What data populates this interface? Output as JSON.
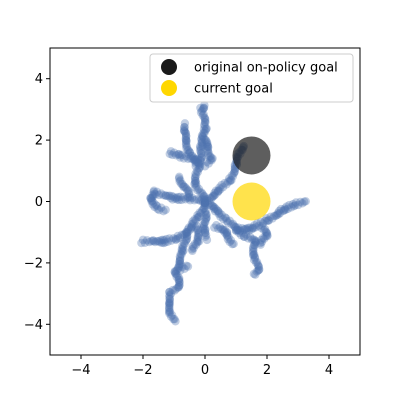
{
  "chart_data": {
    "type": "scatter",
    "title": "",
    "xlabel": "",
    "ylabel": "",
    "xlim": [
      -5,
      5
    ],
    "ylim": [
      -5,
      5
    ],
    "xticks": [
      -4,
      -2,
      0,
      2,
      4
    ],
    "yticks": [
      -4,
      -2,
      0,
      2,
      4
    ],
    "xtick_labels": [
      "−4",
      "−2",
      "0",
      "2",
      "4"
    ],
    "ytick_labels": [
      "−4",
      "−2",
      "0",
      "2",
      "4"
    ],
    "grid": false,
    "legend_position": "upper-right",
    "trajectory_color": "#4c72b0",
    "trajectory_branches": [
      {
        "points": [
          [
            0.0,
            0.0
          ],
          [
            -0.3,
            0.6
          ],
          [
            -0.2,
            1.2
          ],
          [
            -0.1,
            1.8
          ],
          [
            0.0,
            2.4
          ],
          [
            -0.1,
            3.0
          ],
          [
            0.0,
            3.1
          ]
        ]
      },
      {
        "points": [
          [
            -0.3,
            1.2
          ],
          [
            -0.5,
            1.6
          ],
          [
            -0.6,
            2.0
          ],
          [
            -0.7,
            2.3
          ],
          [
            -0.6,
            2.5
          ]
        ]
      },
      {
        "points": [
          [
            0.0,
            1.2
          ],
          [
            0.2,
            1.4
          ],
          [
            0.1,
            1.8
          ],
          [
            -0.1,
            2.1
          ]
        ]
      },
      {
        "points": [
          [
            -0.2,
            1.3
          ],
          [
            -0.8,
            1.5
          ],
          [
            -1.1,
            1.6
          ]
        ]
      },
      {
        "points": [
          [
            0.0,
            0.0
          ],
          [
            0.4,
            0.3
          ],
          [
            0.8,
            0.7
          ],
          [
            1.0,
            1.2
          ],
          [
            1.1,
            1.5
          ],
          [
            1.2,
            1.8
          ]
        ]
      },
      {
        "points": [
          [
            0.0,
            0.0
          ],
          [
            -0.5,
            0.1
          ],
          [
            -1.0,
            0.1
          ],
          [
            -1.3,
            0.2
          ],
          [
            -1.6,
            0.3
          ],
          [
            -1.8,
            0.1
          ],
          [
            -1.5,
            -0.2
          ],
          [
            -1.3,
            -0.3
          ]
        ]
      },
      {
        "points": [
          [
            -0.5,
            0.2
          ],
          [
            -0.7,
            0.5
          ],
          [
            -0.8,
            0.8
          ]
        ]
      },
      {
        "points": [
          [
            0.0,
            0.0
          ],
          [
            -0.2,
            -0.5
          ],
          [
            -0.5,
            -0.9
          ],
          [
            -0.9,
            -1.2
          ],
          [
            -1.3,
            -1.3
          ],
          [
            -1.7,
            -1.3
          ],
          [
            -2.0,
            -1.3
          ]
        ]
      },
      {
        "points": [
          [
            -0.6,
            -1.0
          ],
          [
            -0.7,
            -1.6
          ],
          [
            -0.8,
            -2.0
          ],
          [
            -1.0,
            -2.3
          ],
          [
            -0.8,
            -2.5
          ],
          [
            -0.9,
            -2.8
          ],
          [
            -1.1,
            -3.0
          ],
          [
            -1.2,
            -3.3
          ],
          [
            -1.1,
            -3.6
          ],
          [
            -1.0,
            -3.9
          ]
        ]
      },
      {
        "points": [
          [
            -0.8,
            -2.2
          ],
          [
            -0.6,
            -2.1
          ]
        ]
      },
      {
        "points": [
          [
            0.0,
            0.0
          ],
          [
            0.4,
            -0.3
          ],
          [
            0.7,
            -0.6
          ],
          [
            1.0,
            -0.9
          ],
          [
            1.3,
            -1.1
          ],
          [
            1.6,
            -1.3
          ],
          [
            1.6,
            -1.8
          ],
          [
            1.7,
            -2.2
          ],
          [
            1.6,
            -2.4
          ]
        ]
      },
      {
        "points": [
          [
            0.0,
            -0.3
          ],
          [
            0.0,
            -0.9
          ],
          [
            0.1,
            -1.2
          ]
        ]
      },
      {
        "points": [
          [
            -0.3,
            -0.8
          ],
          [
            -0.2,
            -1.3
          ],
          [
            -0.4,
            -1.6
          ]
        ]
      },
      {
        "points": [
          [
            1.0,
            -0.9
          ],
          [
            1.5,
            -0.9
          ],
          [
            2.0,
            -0.6
          ],
          [
            2.5,
            -0.3
          ],
          [
            2.9,
            -0.1
          ],
          [
            3.2,
            0.0
          ]
        ]
      },
      {
        "points": [
          [
            1.8,
            -0.8
          ],
          [
            2.0,
            -1.1
          ],
          [
            1.8,
            -1.4
          ]
        ]
      },
      {
        "points": [
          [
            0.3,
            -0.8
          ],
          [
            0.7,
            -1.0
          ],
          [
            0.9,
            -1.4
          ]
        ]
      }
    ],
    "series": [
      {
        "name": "original on-policy goal",
        "marker": "circle",
        "color": "#1a1a1a",
        "opacity": 0.7,
        "points": [
          [
            1.5,
            1.5
          ]
        ]
      },
      {
        "name": "current goal",
        "marker": "circle",
        "color": "#ffd700",
        "opacity": 0.7,
        "points": [
          [
            1.5,
            0.0
          ]
        ]
      }
    ]
  }
}
